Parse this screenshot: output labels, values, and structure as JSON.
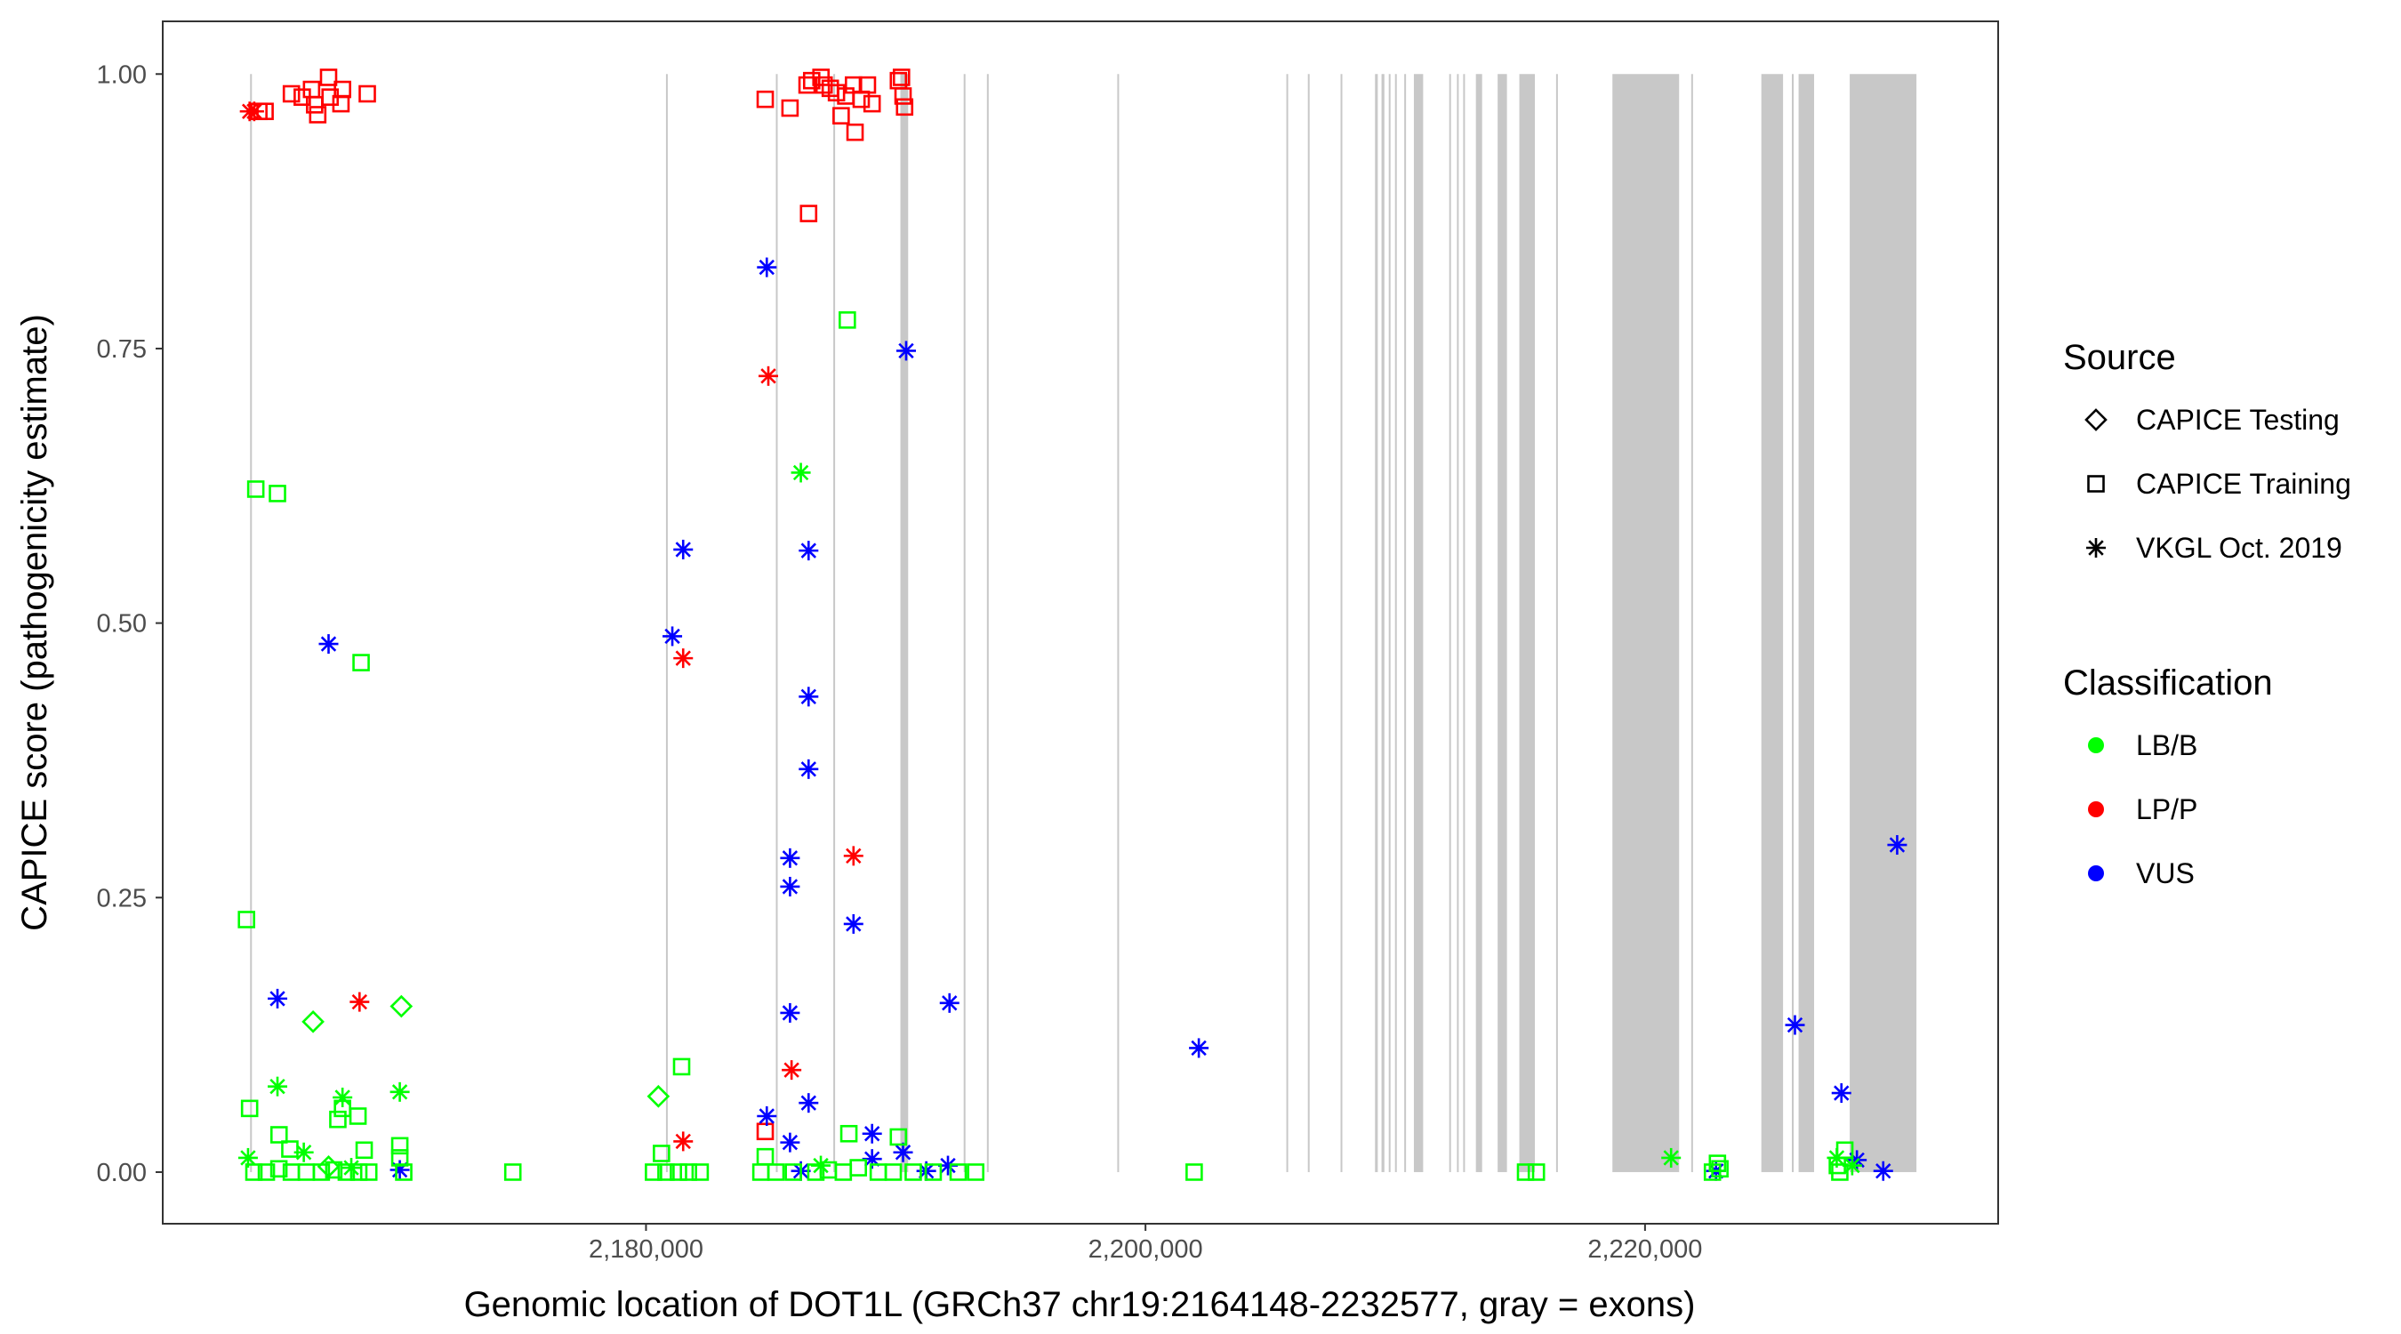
{
  "chart_data": {
    "type": "scatter",
    "title": "",
    "xlabel": "Genomic location of DOT1L (GRCh37 chr19:2164148-2232577, gray = exons)",
    "ylabel": "CAPICE score (pathogenicity estimate)",
    "xlim": [
      2160650,
      2234140
    ],
    "ylim": [
      -0.047,
      1.048
    ],
    "x_ticks": [
      2180000,
      2200000,
      2220000
    ],
    "x_tick_labels": [
      "2,180,000",
      "2,200,000",
      "2,220,000"
    ],
    "y_ticks": [
      0,
      0.25,
      0.5,
      0.75,
      1.0
    ],
    "y_tick_labels": [
      "0.00",
      "0.25",
      "0.50",
      "0.75",
      "1.00"
    ],
    "grid": false,
    "legend_placement": "right",
    "legend": {
      "source_title": "Source",
      "sources": [
        {
          "name": "CAPICE Testing",
          "shape": "diamond"
        },
        {
          "name": "CAPICE Training",
          "shape": "square"
        },
        {
          "name": "VKGL Oct. 2019",
          "shape": "asterisk"
        }
      ],
      "class_title": "Classification",
      "classes": [
        {
          "name": "LB/B",
          "color": "#00FF00"
        },
        {
          "name": "LP/P",
          "color": "#FF0000"
        },
        {
          "name": "VUS",
          "color": "#0000FF"
        }
      ]
    },
    "exon_color": "#C8C8C8",
    "exons": [
      [
        2164148,
        2164220
      ],
      [
        2180800,
        2180850
      ],
      [
        2185200,
        2185260
      ],
      [
        2187500,
        2187560
      ],
      [
        2190186,
        2190497
      ],
      [
        2192720,
        2192780
      ],
      [
        2193650,
        2193710
      ],
      [
        2198870,
        2198930
      ],
      [
        2205640,
        2205700
      ],
      [
        2206500,
        2206560
      ],
      [
        2207810,
        2207870
      ],
      [
        2209190,
        2209300
      ],
      [
        2209450,
        2209564
      ],
      [
        2209740,
        2209800
      ],
      [
        2209990,
        2210050
      ],
      [
        2210360,
        2210420
      ],
      [
        2210745,
        2211117
      ],
      [
        2212160,
        2212220
      ],
      [
        2212470,
        2212530
      ],
      [
        2212720,
        2212780
      ],
      [
        2213228,
        2213477
      ],
      [
        2214099,
        2214472
      ],
      [
        2214968,
        2215589
      ],
      [
        2216440,
        2216500
      ],
      [
        2218695,
        2221366
      ],
      [
        2221850,
        2221910
      ],
      [
        2224658,
        2225527
      ],
      [
        2225880,
        2225940
      ],
      [
        2226149,
        2226770
      ],
      [
        2228197,
        2230868
      ]
    ],
    "points_fields": [
      "x",
      "score",
      "source_index",
      "class_index"
    ],
    "points": [
      [
        2164128,
        0.966,
        2,
        1
      ],
      [
        2164314,
        0.966,
        2,
        1
      ],
      [
        2164500,
        0.966,
        1,
        1
      ],
      [
        2164748,
        0.966,
        1,
        1
      ],
      [
        2165802,
        0.982,
        1,
        1
      ],
      [
        2166236,
        0.979,
        1,
        1
      ],
      [
        2166608,
        0.986,
        1,
        1
      ],
      [
        2166732,
        0.972,
        1,
        1
      ],
      [
        2166856,
        0.963,
        1,
        1
      ],
      [
        2167290,
        0.997,
        1,
        1
      ],
      [
        2167352,
        0.979,
        1,
        1
      ],
      [
        2167786,
        0.973,
        1,
        1
      ],
      [
        2167848,
        0.986,
        1,
        1
      ],
      [
        2168840,
        0.982,
        1,
        1
      ],
      [
        2184774,
        0.977,
        1,
        1
      ],
      [
        2185766,
        0.969,
        1,
        1
      ],
      [
        2186448,
        0.99,
        1,
        1
      ],
      [
        2186634,
        0.994,
        1,
        1
      ],
      [
        2187006,
        0.997,
        1,
        1
      ],
      [
        2187130,
        0.99,
        1,
        1
      ],
      [
        2187378,
        0.987,
        1,
        1
      ],
      [
        2187626,
        0.983,
        1,
        1
      ],
      [
        2187812,
        0.962,
        1,
        1
      ],
      [
        2187998,
        0.98,
        1,
        1
      ],
      [
        2188308,
        0.99,
        1,
        1
      ],
      [
        2188370,
        0.947,
        1,
        1
      ],
      [
        2188618,
        0.977,
        1,
        1
      ],
      [
        2188866,
        0.99,
        1,
        1
      ],
      [
        2189052,
        0.973,
        1,
        1
      ],
      [
        2190106,
        0.994,
        1,
        1
      ],
      [
        2190230,
        0.997,
        1,
        1
      ],
      [
        2190292,
        0.98,
        1,
        1
      ],
      [
        2190354,
        0.97,
        1,
        1
      ],
      [
        2186510,
        0.873,
        1,
        1
      ],
      [
        2184898,
        0.725,
        2,
        1
      ],
      [
        2181488,
        0.468,
        2,
        1
      ],
      [
        2168530,
        0.155,
        2,
        1
      ],
      [
        2188308,
        0.288,
        2,
        1
      ],
      [
        2185828,
        0.093,
        2,
        1
      ],
      [
        2181488,
        0.028,
        2,
        1
      ],
      [
        2184774,
        0.037,
        1,
        1
      ],
      [
        2184836,
        0.824,
        2,
        2
      ],
      [
        2190416,
        0.748,
        2,
        2
      ],
      [
        2181488,
        0.567,
        2,
        2
      ],
      [
        2186510,
        0.566,
        2,
        2
      ],
      [
        2181054,
        0.488,
        2,
        2
      ],
      [
        2167290,
        0.481,
        2,
        2
      ],
      [
        2186510,
        0.433,
        2,
        2
      ],
      [
        2186510,
        0.367,
        2,
        2
      ],
      [
        2185766,
        0.286,
        2,
        2
      ],
      [
        2185766,
        0.26,
        2,
        2
      ],
      [
        2188308,
        0.226,
        2,
        2
      ],
      [
        2165244,
        0.158,
        2,
        2
      ],
      [
        2192152,
        0.154,
        2,
        2
      ],
      [
        2185766,
        0.145,
        2,
        2
      ],
      [
        2202134,
        0.113,
        2,
        2
      ],
      [
        2226004,
        0.134,
        2,
        2
      ],
      [
        2227864,
        0.072,
        2,
        2
      ],
      [
        2230096,
        0.298,
        2,
        2
      ],
      [
        2184836,
        0.051,
        2,
        2
      ],
      [
        2186510,
        0.063,
        2,
        2
      ],
      [
        2185766,
        0.027,
        2,
        2
      ],
      [
        2189052,
        0.035,
        2,
        2
      ],
      [
        2189052,
        0.012,
        2,
        2
      ],
      [
        2190292,
        0.018,
        2,
        2
      ],
      [
        2228484,
        0.011,
        2,
        2
      ],
      [
        2229538,
        0.001,
        2,
        2
      ],
      [
        2170142,
        0.002,
        2,
        2
      ],
      [
        2186200,
        0.001,
        2,
        2
      ],
      [
        2191222,
        0.001,
        2,
        2
      ],
      [
        2192090,
        0.006,
        2,
        2
      ],
      [
        2222842,
        0.001,
        2,
        2
      ],
      [
        2164376,
        0.622,
        1,
        0
      ],
      [
        2165244,
        0.618,
        1,
        0
      ],
      [
        2168592,
        0.464,
        1,
        0
      ],
      [
        2188060,
        0.776,
        1,
        0
      ],
      [
        2164004,
        0.23,
        1,
        0
      ],
      [
        2164128,
        0.058,
        1,
        0
      ],
      [
        2181426,
        0.096,
        1,
        0
      ],
      [
        2165306,
        0.034,
        1,
        0
      ],
      [
        2165740,
        0.021,
        1,
        0
      ],
      [
        2167662,
        0.048,
        1,
        0
      ],
      [
        2167848,
        0.058,
        1,
        0
      ],
      [
        2168468,
        0.051,
        1,
        0
      ],
      [
        2168716,
        0.02,
        1,
        0
      ],
      [
        2170142,
        0.024,
        1,
        0
      ],
      [
        2170142,
        0.013,
        1,
        0
      ],
      [
        2174668,
        0.0,
        1,
        0
      ],
      [
        2180620,
        0.017,
        1,
        0
      ],
      [
        2184774,
        0.014,
        1,
        0
      ],
      [
        2188122,
        0.035,
        1,
        0
      ],
      [
        2190106,
        0.032,
        1,
        0
      ],
      [
        2201948,
        0.0,
        1,
        0
      ],
      [
        2215216,
        0.0,
        1,
        0
      ],
      [
        2215650,
        0.0,
        1,
        0
      ],
      [
        2164300,
        0.0,
        1,
        0
      ],
      [
        2164800,
        0.0,
        1,
        0
      ],
      [
        2165300,
        0.003,
        1,
        0
      ],
      [
        2165800,
        0.0,
        1,
        0
      ],
      [
        2166400,
        0.0,
        1,
        0
      ],
      [
        2167000,
        0.0,
        1,
        0
      ],
      [
        2167500,
        0.002,
        1,
        0
      ],
      [
        2168000,
        0.0,
        1,
        0
      ],
      [
        2168500,
        0.0,
        1,
        0
      ],
      [
        2168900,
        0.0,
        1,
        0
      ],
      [
        2170300,
        0.0,
        1,
        0
      ],
      [
        2180300,
        0.0,
        1,
        0
      ],
      [
        2180800,
        0.0,
        1,
        0
      ],
      [
        2181300,
        0.0,
        1,
        0
      ],
      [
        2181700,
        0.0,
        1,
        0
      ],
      [
        2182170,
        0.0,
        1,
        0
      ],
      [
        2184600,
        0.0,
        1,
        0
      ],
      [
        2185200,
        0.0,
        1,
        0
      ],
      [
        2185900,
        0.0,
        1,
        0
      ],
      [
        2186800,
        0.0,
        1,
        0
      ],
      [
        2187300,
        0.002,
        1,
        0
      ],
      [
        2187900,
        0.0,
        1,
        0
      ],
      [
        2188500,
        0.004,
        1,
        0
      ],
      [
        2189300,
        0.0,
        1,
        0
      ],
      [
        2189900,
        0.0,
        1,
        0
      ],
      [
        2190700,
        0.0,
        1,
        0
      ],
      [
        2191500,
        0.0,
        1,
        0
      ],
      [
        2192500,
        0.0,
        1,
        0
      ],
      [
        2193200,
        0.0,
        1,
        0
      ],
      [
        2222700,
        0.0,
        1,
        0
      ],
      [
        2222900,
        0.008,
        1,
        0
      ],
      [
        2223000,
        0.003,
        1,
        0
      ],
      [
        2227700,
        0.006,
        1,
        0
      ],
      [
        2227800,
        0.0,
        1,
        0
      ],
      [
        2228000,
        0.02,
        1,
        0
      ],
      [
        2166670,
        0.137,
        0,
        0
      ],
      [
        2170204,
        0.151,
        0,
        0
      ],
      [
        2180496,
        0.069,
        0,
        0
      ],
      [
        2167290,
        0.005,
        0,
        0
      ],
      [
        2186200,
        0.637,
        2,
        0
      ],
      [
        2165244,
        0.078,
        2,
        0
      ],
      [
        2170142,
        0.073,
        2,
        0
      ],
      [
        2167848,
        0.068,
        2,
        0
      ],
      [
        2221044,
        0.013,
        2,
        0
      ],
      [
        2164066,
        0.013,
        2,
        0
      ],
      [
        2166298,
        0.018,
        2,
        0
      ],
      [
        2227676,
        0.013,
        2,
        0
      ],
      [
        2228296,
        0.006,
        2,
        0
      ],
      [
        2187000,
        0.006,
        2,
        0
      ],
      [
        2168200,
        0.004,
        2,
        0
      ]
    ]
  }
}
